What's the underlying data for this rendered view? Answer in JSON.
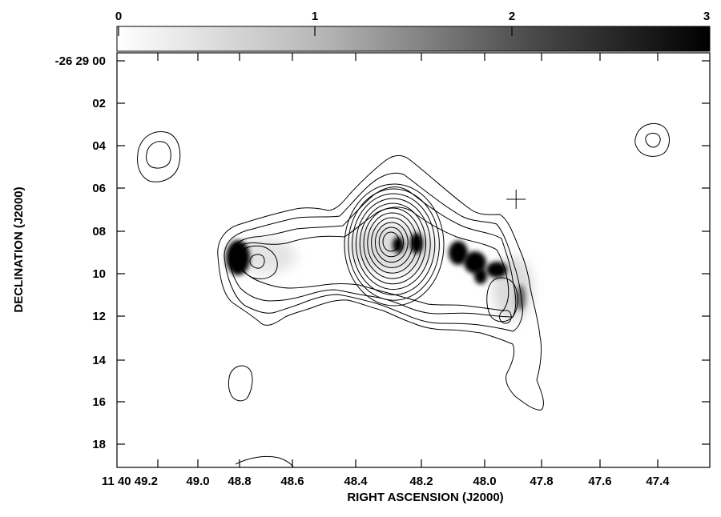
{
  "chart_data": {
    "type": "heatmap",
    "title": "",
    "xlabel": "RIGHT ASCENSION (J2000)",
    "ylabel": "DECLINATION (J2000)",
    "colorbar": {
      "ticks": [
        "0",
        "1",
        "2",
        "3"
      ],
      "range": [
        0,
        3
      ],
      "colormap": "white-to-black greyscale"
    },
    "x_ticks": [
      "11 40 49.2",
      "49.0",
      "48.8",
      "48.6",
      "48.4",
      "48.2",
      "48.0",
      "47.8",
      "47.6",
      "47.4"
    ],
    "x_range_seconds": [
      49.3,
      47.25
    ],
    "y_ticks": [
      "-26 29 00",
      "02",
      "04",
      "06",
      "08",
      "10",
      "12",
      "14",
      "16",
      "18"
    ],
    "y_range_arcsec": [
      0,
      19.1
    ],
    "contours": "black contour lines of an extended source centered near RA 48.35 s, Dec 29 08.7",
    "greyscale_peaks": [
      {
        "ra_s": 48.9,
        "dec_arcsec": 9.2,
        "level": 3
      },
      {
        "ra_s": 48.34,
        "dec_arcsec": 8.7,
        "level": 3
      },
      {
        "ra_s": 48.27,
        "dec_arcsec": 8.5,
        "level": 3
      },
      {
        "ra_s": 48.14,
        "dec_arcsec": 8.9,
        "level": 3
      },
      {
        "ra_s": 48.06,
        "dec_arcsec": 9.6,
        "level": 3
      },
      {
        "ra_s": 47.98,
        "dec_arcsec": 9.8,
        "level": 3
      }
    ],
    "markers": [
      {
        "type": "cross",
        "ra_s": 47.91,
        "dec_arcsec": 6.5
      }
    ],
    "grid": false
  },
  "colors": {
    "foreground": "#000000",
    "background": "#ffffff"
  }
}
